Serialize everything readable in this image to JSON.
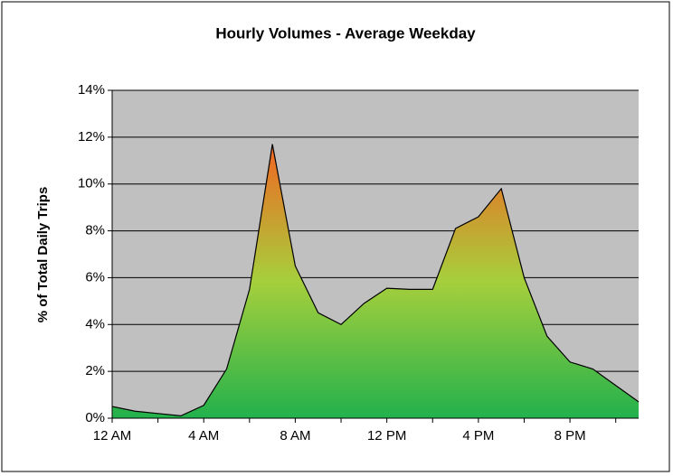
{
  "chart_data": {
    "type": "area",
    "title": "Hourly Volumes - Average Weekday",
    "ylabel": "% of Total Daily Trips",
    "categories": [
      "12 AM",
      null,
      null,
      null,
      "4 AM",
      null,
      null,
      null,
      "8 AM",
      null,
      null,
      null,
      "12 PM",
      null,
      null,
      null,
      "4 PM",
      null,
      null,
      null,
      "8 PM",
      null,
      null,
      null
    ],
    "values": [
      0.5,
      0.3,
      0.2,
      0.1,
      0.55,
      2.1,
      5.5,
      11.7,
      6.5,
      4.5,
      4.0,
      4.9,
      5.55,
      5.5,
      5.5,
      8.1,
      8.6,
      9.8,
      6.0,
      3.5,
      2.4,
      2.1,
      1.4,
      0.7
    ],
    "gradient": [
      "#22b14c",
      "#a6cf3c",
      "#f26522"
    ],
    "plot_background": "#c0c0c0",
    "ylim": [
      0,
      14
    ],
    "yticks": [
      {
        "value": 0,
        "label": "0%"
      },
      {
        "value": 2,
        "label": "2%"
      },
      {
        "value": 4,
        "label": "4%"
      },
      {
        "value": 6,
        "label": "6%"
      },
      {
        "value": 8,
        "label": "8%"
      },
      {
        "value": 10,
        "label": "10%"
      },
      {
        "value": 12,
        "label": "12%"
      },
      {
        "value": 14,
        "label": "14%"
      }
    ],
    "grid": true
  }
}
